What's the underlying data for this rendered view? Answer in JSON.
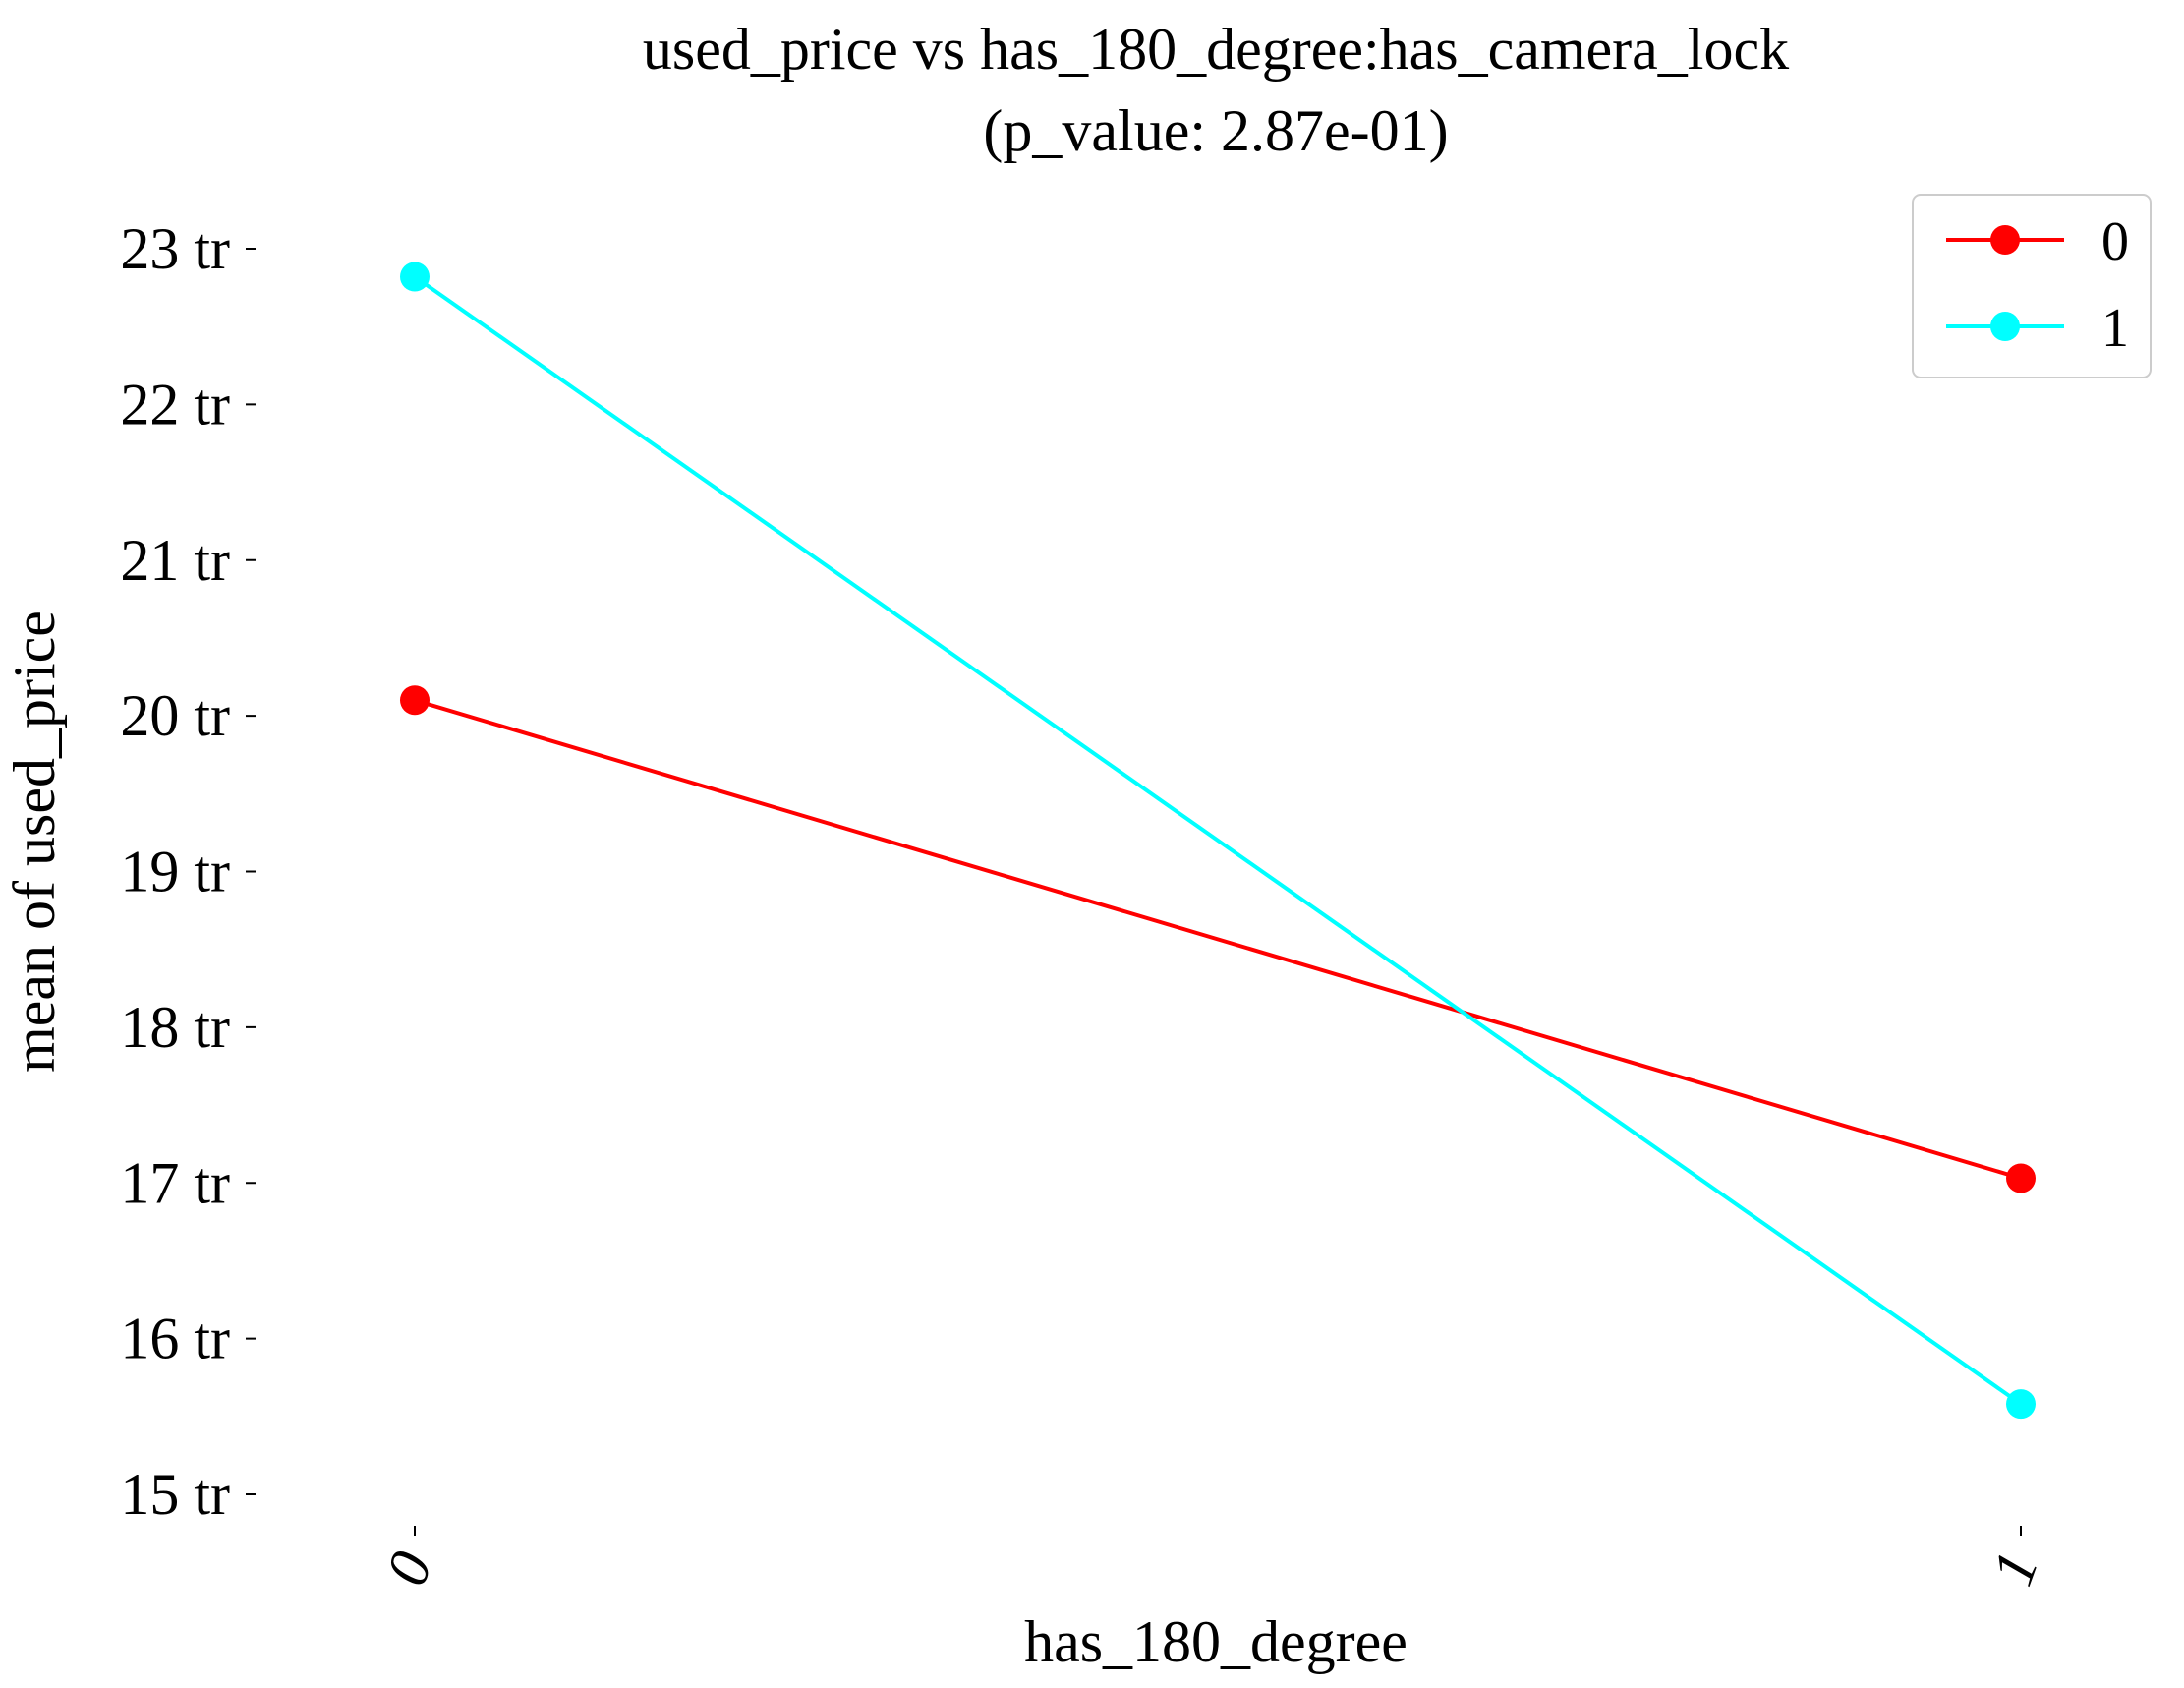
{
  "chart_data": {
    "type": "line",
    "title": "used_price vs has_180_degree:has_camera_lock",
    "subtitle": "(p_value: 2.87e-01)",
    "xlabel": "has_180_degree",
    "ylabel": "mean of used_price",
    "categories": [
      "0",
      "1"
    ],
    "y_tick_values": [
      15,
      16,
      17,
      18,
      19,
      20,
      21,
      22,
      23
    ],
    "y_tick_labels": [
      "15 tr",
      "16 tr",
      "17 tr",
      "18 tr",
      "19 tr",
      "20 tr",
      "21 tr",
      "22 tr",
      "23 tr"
    ],
    "ylim": [
      14.8,
      23.2
    ],
    "grid": false,
    "legend_position": "top-right",
    "series": [
      {
        "name": "0",
        "color": "#ff0000",
        "values": [
          20.1,
          17.03
        ]
      },
      {
        "name": "1",
        "color": "#00ffff",
        "values": [
          22.82,
          15.58
        ]
      }
    ]
  }
}
